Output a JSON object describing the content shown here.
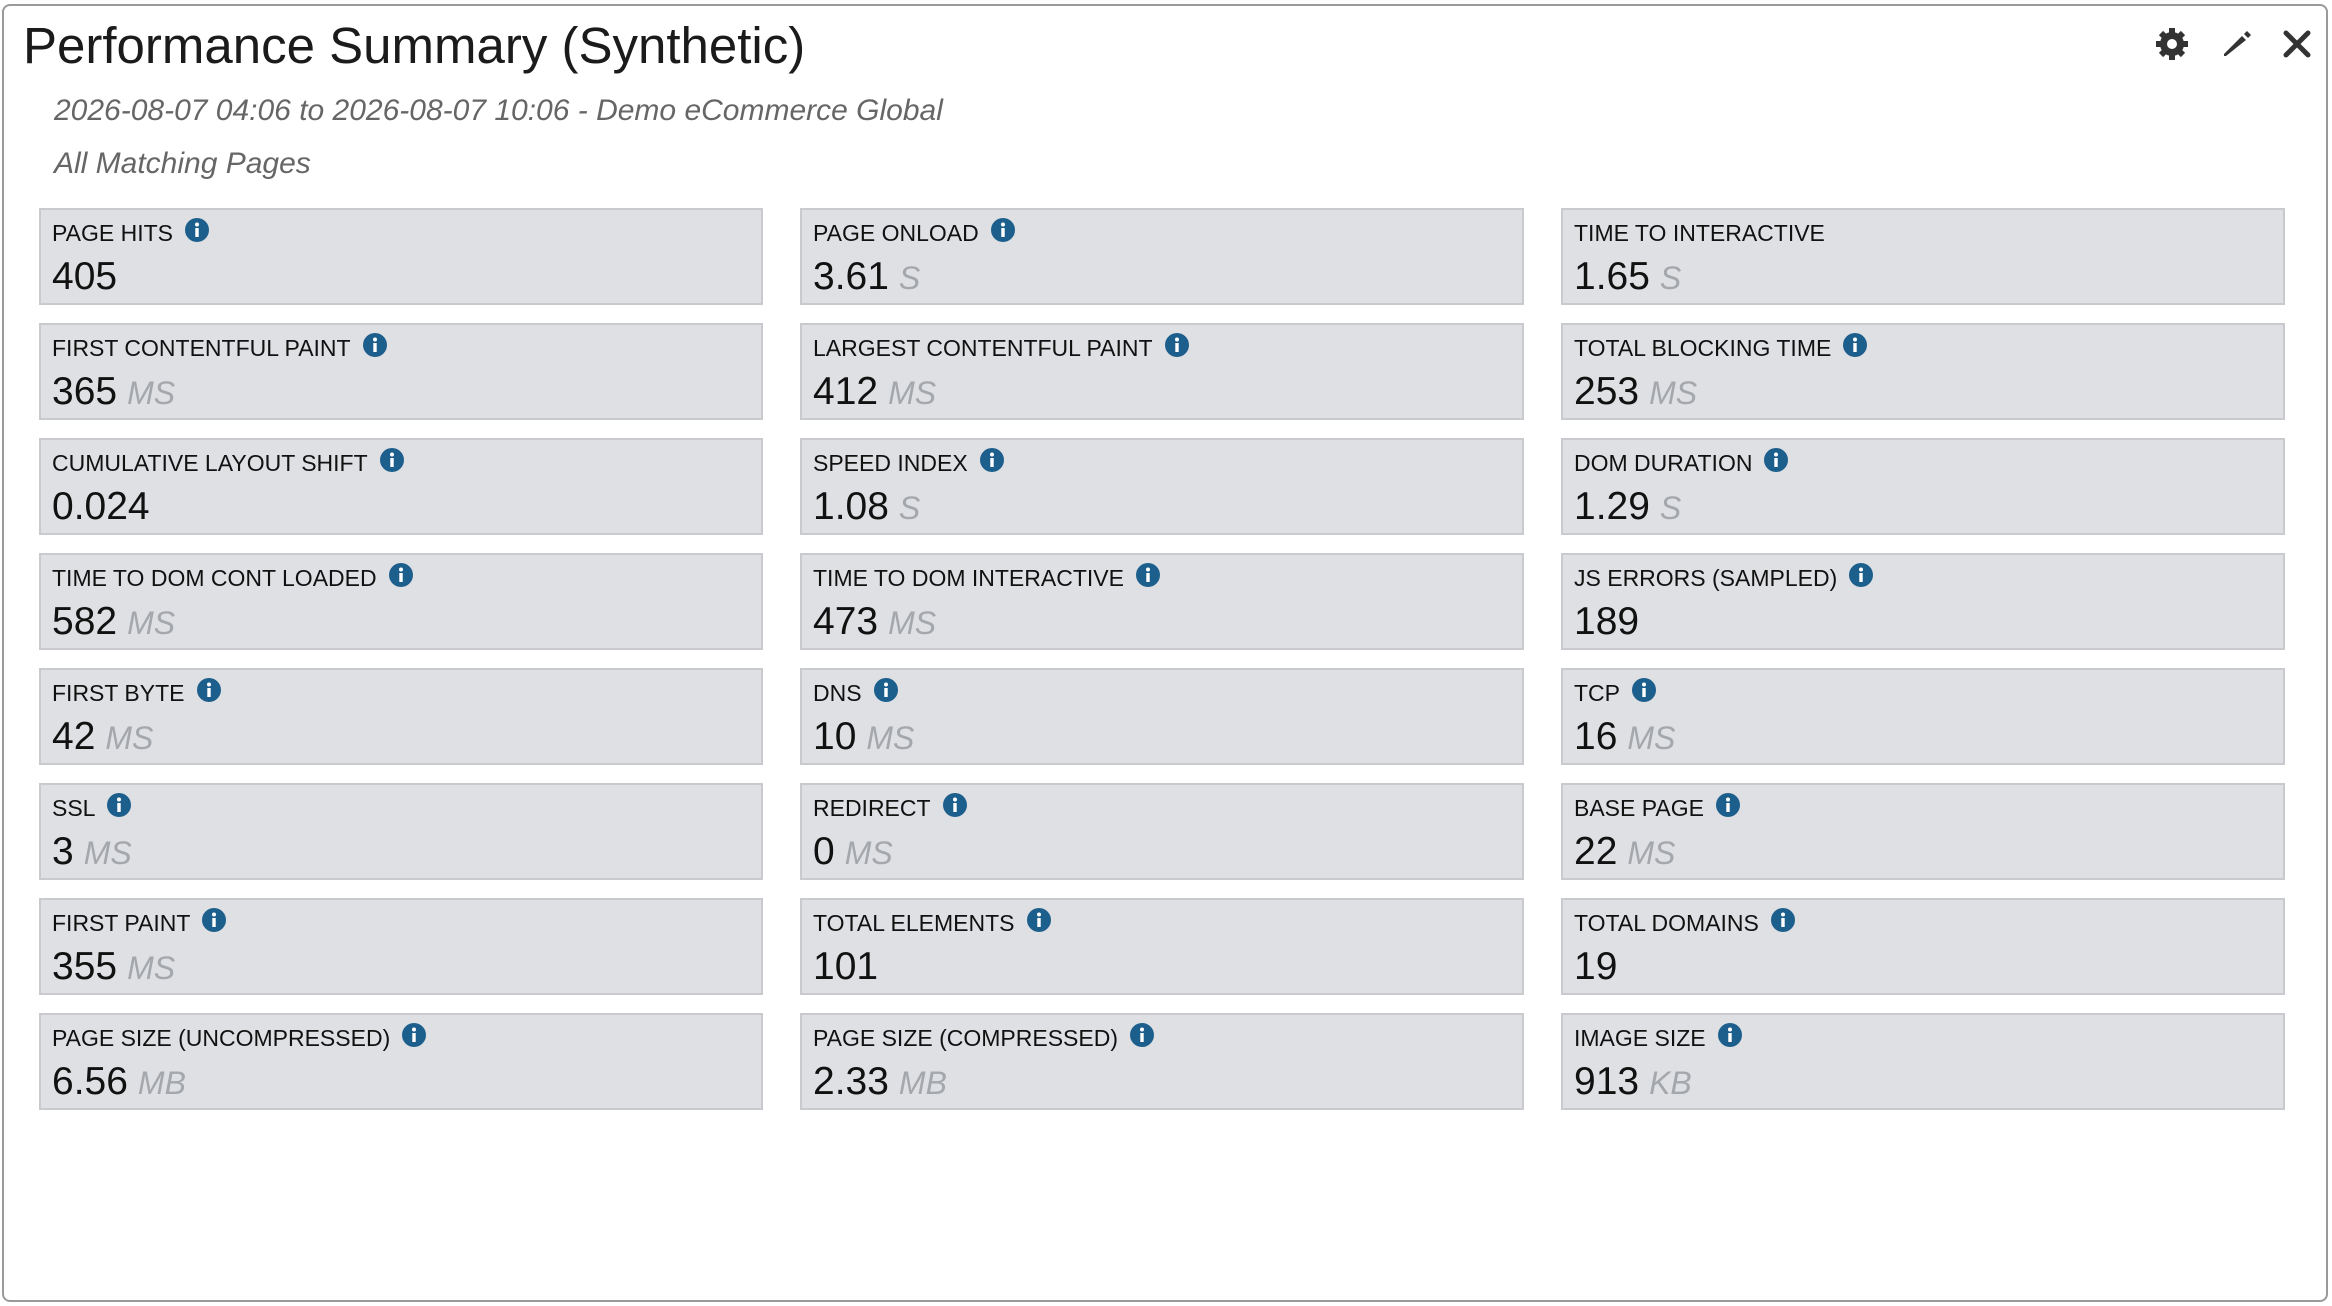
{
  "header": {
    "title": "Performance Summary (Synthetic)",
    "subtitle": "2026-08-07 04:06 to 2026-08-07 10:06 - Demo eCommerce Global",
    "scope": "All Matching Pages"
  },
  "tiles": [
    {
      "label": "PAGE HITS",
      "value": 405,
      "info": true
    },
    {
      "label": "PAGE ONLOAD",
      "value": 3.61,
      "unit": "S",
      "info": true
    },
    {
      "label": "TIME TO INTERACTIVE",
      "value": 1.65,
      "unit": "S",
      "info": false
    },
    {
      "label": "FIRST CONTENTFUL PAINT",
      "value": 365,
      "unit": "MS",
      "info": true
    },
    {
      "label": "LARGEST CONTENTFUL PAINT",
      "value": 412,
      "unit": "MS",
      "info": true
    },
    {
      "label": "TOTAL BLOCKING TIME",
      "value": 253,
      "unit": "MS",
      "info": true
    },
    {
      "label": "CUMULATIVE LAYOUT SHIFT",
      "value": 0.024,
      "info": true
    },
    {
      "label": "SPEED INDEX",
      "value": 1.08,
      "unit": "S",
      "info": true
    },
    {
      "label": "DOM DURATION",
      "value": 1.29,
      "unit": "S",
      "info": true
    },
    {
      "label": "TIME TO DOM CONT LOADED",
      "value": 582,
      "unit": "MS",
      "info": true
    },
    {
      "label": "TIME TO DOM INTERACTIVE",
      "value": 473,
      "unit": "MS",
      "info": true
    },
    {
      "label": "JS ERRORS (SAMPLED)",
      "value": 189,
      "info": true
    },
    {
      "label": "FIRST BYTE",
      "value": 42,
      "unit": "MS",
      "info": true
    },
    {
      "label": "DNS",
      "value": 10,
      "unit": "MS",
      "info": true
    },
    {
      "label": "TCP",
      "value": 16,
      "unit": "MS",
      "info": true
    },
    {
      "label": "SSL",
      "value": 3,
      "unit": "MS",
      "info": true
    },
    {
      "label": "REDIRECT",
      "value": 0,
      "unit": "MS",
      "info": true
    },
    {
      "label": "BASE PAGE",
      "value": 22,
      "unit": "MS",
      "info": true
    },
    {
      "label": "FIRST PAINT",
      "value": 355,
      "unit": "MS",
      "info": true
    },
    {
      "label": "TOTAL ELEMENTS",
      "value": 101,
      "info": true
    },
    {
      "label": "TOTAL DOMAINS",
      "value": 19,
      "info": true
    },
    {
      "label": "PAGE SIZE (UNCOMPRESSED)",
      "value": 6.56,
      "unit": "MB",
      "info": true
    },
    {
      "label": "PAGE SIZE (COMPRESSED)",
      "value": 2.33,
      "unit": "MB",
      "info": true
    },
    {
      "label": "IMAGE SIZE",
      "value": 913,
      "unit": "KB",
      "info": true
    }
  ]
}
